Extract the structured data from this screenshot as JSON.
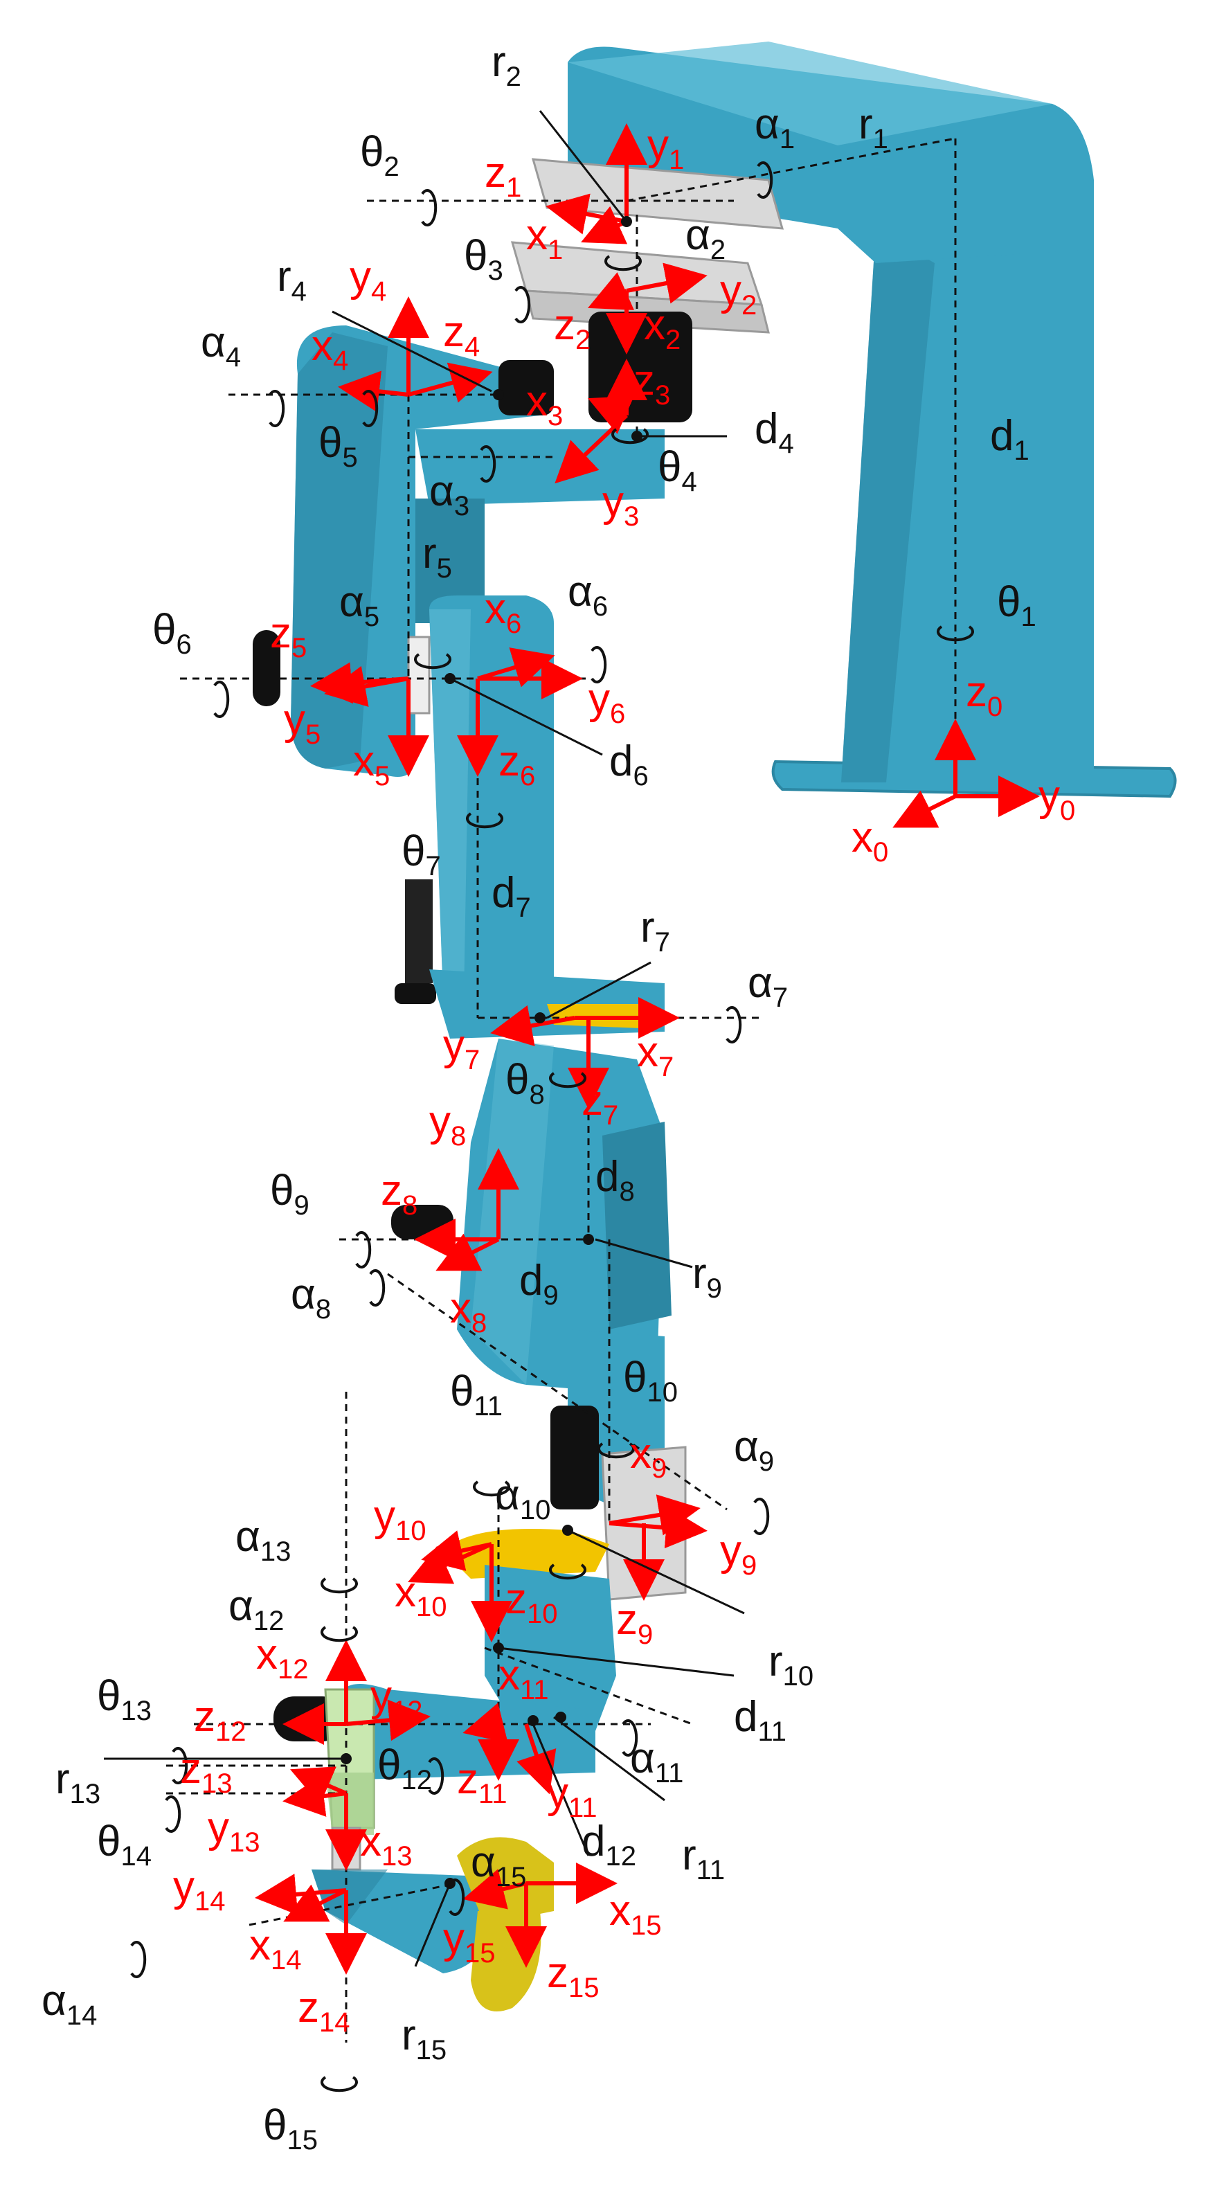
{
  "colors": {
    "link_body": "#3aa3c2",
    "link_shadow": "#2c87a3",
    "link_highlight": "#63bfd8",
    "motor": "#111111",
    "servo_horn": "#f2c400",
    "bracket_light": "#d9d9d9",
    "gripper_tip": "#d8c21a",
    "green_part": "#c9e8b0",
    "frame_axis": "#ff0000",
    "dimension_line": "#111111"
  },
  "frames": [
    {
      "id": "f0",
      "x": "x",
      "xs": "0",
      "y": "y",
      "ys": "0",
      "z": "z",
      "zs": "0"
    },
    {
      "id": "f1",
      "x": "x",
      "xs": "1",
      "y": "y",
      "ys": "1",
      "z": "z",
      "zs": "1"
    },
    {
      "id": "f2",
      "x": "x",
      "xs": "2",
      "y": "y",
      "ys": "2",
      "z": "z",
      "zs": "2"
    },
    {
      "id": "f3",
      "x": "x",
      "xs": "3",
      "y": "y",
      "ys": "3",
      "z": "z",
      "zs": "3"
    },
    {
      "id": "f4",
      "x": "x",
      "xs": "4",
      "y": "y",
      "ys": "4",
      "z": "z",
      "zs": "4"
    },
    {
      "id": "f5",
      "x": "x",
      "xs": "5",
      "y": "y",
      "ys": "5",
      "z": "z",
      "zs": "5"
    },
    {
      "id": "f6",
      "x": "x",
      "xs": "6",
      "y": "y",
      "ys": "6",
      "z": "z",
      "zs": "6"
    },
    {
      "id": "f7",
      "x": "x",
      "xs": "7",
      "y": "y",
      "ys": "7",
      "z": "z",
      "zs": "7"
    },
    {
      "id": "f8",
      "x": "x",
      "xs": "8",
      "y": "y",
      "ys": "8",
      "z": "z",
      "zs": "8"
    },
    {
      "id": "f9",
      "x": "x",
      "xs": "9",
      "y": "y",
      "ys": "9",
      "z": "z",
      "zs": "9"
    },
    {
      "id": "f10",
      "x": "x",
      "xs": "10",
      "y": "y",
      "ys": "10",
      "z": "z",
      "zs": "10"
    },
    {
      "id": "f11",
      "x": "x",
      "xs": "11",
      "y": "y",
      "ys": "11",
      "z": "z",
      "zs": "11"
    },
    {
      "id": "f12",
      "x": "x",
      "xs": "12",
      "y": "y",
      "ys": "12",
      "z": "z",
      "zs": "12"
    },
    {
      "id": "f13",
      "x": "x",
      "xs": "13",
      "y": "y",
      "ys": "13",
      "z": "z",
      "zs": "13"
    },
    {
      "id": "f14",
      "x": "x",
      "xs": "14",
      "y": "y",
      "ys": "14",
      "z": "z",
      "zs": "14"
    },
    {
      "id": "f15",
      "x": "x",
      "xs": "15",
      "y": "y",
      "ys": "15",
      "z": "z",
      "zs": "15"
    }
  ],
  "params": {
    "theta": {
      "sym": "θ",
      "subs": [
        "1",
        "2",
        "3",
        "4",
        "5",
        "6",
        "7",
        "8",
        "9",
        "10",
        "11",
        "12",
        "13",
        "14",
        "15"
      ]
    },
    "alpha": {
      "sym": "α",
      "subs": [
        "1",
        "2",
        "3",
        "4",
        "5",
        "6",
        "7",
        "8",
        "9",
        "10",
        "11",
        "12",
        "13",
        "14",
        "15"
      ]
    },
    "r": {
      "sym": "r",
      "subs": [
        "1",
        "2",
        "4",
        "5",
        "7",
        "9",
        "10",
        "11",
        "13",
        "15"
      ]
    },
    "d": {
      "sym": "d",
      "subs": [
        "1",
        "4",
        "6",
        "7",
        "8",
        "9",
        "11",
        "12"
      ]
    }
  }
}
